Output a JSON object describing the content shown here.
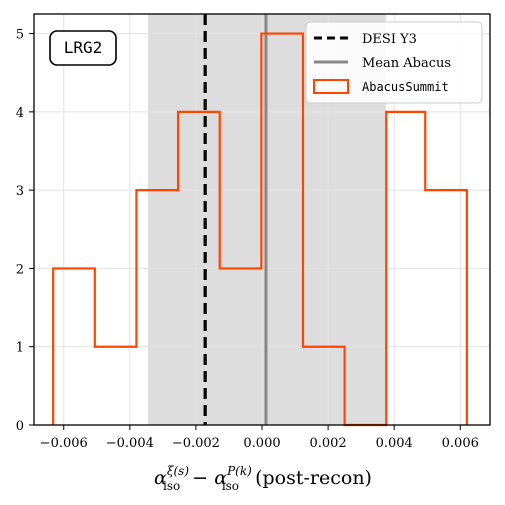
{
  "chart_data": {
    "type": "bar",
    "panel_label": "LRG2",
    "xlabel_parts": {
      "alpha": "α",
      "sub1": "iso",
      "sup1": "ξ(s)",
      "minus": " − ",
      "sub2": "iso",
      "sup2": "P(k)",
      "suffix": " (post-recon)"
    },
    "xlim": [
      -0.0069,
      0.0069
    ],
    "ylim": [
      0,
      5.25
    ],
    "x_ticks": [
      -0.006,
      -0.004,
      -0.002,
      0.0,
      0.002,
      0.004,
      0.006
    ],
    "x_tick_labels": [
      "−0.006",
      "−0.004",
      "−0.002",
      "0.000",
      "0.002",
      "0.004",
      "0.006"
    ],
    "y_ticks": [
      0,
      1,
      2,
      3,
      4,
      5
    ],
    "y_tick_labels": [
      "0",
      "1",
      "2",
      "3",
      "4",
      "5"
    ],
    "grid": true,
    "bin_edges": [
      -0.00632,
      -0.00506,
      -0.0038,
      -0.00254,
      -0.00128,
      -2e-05,
      0.00124,
      0.0025,
      0.00376,
      0.00494,
      0.0062
    ],
    "counts": [
      2,
      1,
      3,
      4,
      2,
      5,
      1,
      0,
      4,
      3
    ],
    "shaded_band": [
      -0.00345,
      0.00375
    ],
    "desi_y3": -0.00172,
    "mean_abacus": 0.00012,
    "legend": {
      "position": "top-right",
      "entries": [
        "DESI Y3",
        "Mean Abacus",
        "AbacusSummit"
      ]
    },
    "colors": {
      "histogram": "#ff4500",
      "desi": "#000000",
      "mean": "#888888",
      "band": "#dddddd",
      "grid": "#e2e2e2"
    }
  }
}
